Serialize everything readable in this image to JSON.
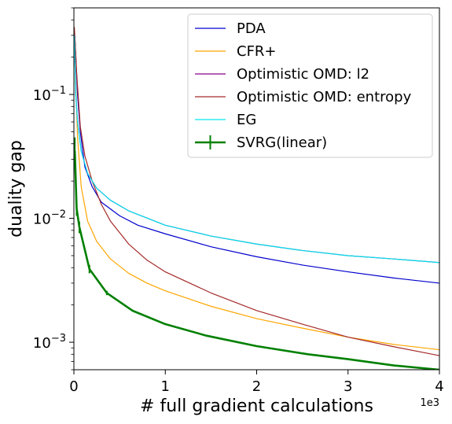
{
  "chart_data": {
    "type": "line",
    "title": "",
    "xlabel": "# full gradient calculations",
    "ylabel": "duality gap",
    "x_offset_label": "1e3",
    "xlim": [
      0,
      4000
    ],
    "ylim": [
      0.0006,
      0.5
    ],
    "y_scale": "log",
    "grid": false,
    "legend_position": "top-right",
    "x_ticks": [
      {
        "value": 0,
        "label": "0"
      },
      {
        "value": 1000,
        "label": "1"
      },
      {
        "value": 2000,
        "label": "2"
      },
      {
        "value": 3000,
        "label": "3"
      },
      {
        "value": 4000,
        "label": "4"
      }
    ],
    "y_ticks": [
      {
        "value": 0.001,
        "base": "10",
        "exp": "−3"
      },
      {
        "value": 0.01,
        "base": "10",
        "exp": "−2"
      },
      {
        "value": 0.1,
        "base": "10",
        "exp": "−1"
      }
    ],
    "series": [
      {
        "name": "PDA",
        "color": "#0000cd",
        "points": [
          [
            10,
            0.3
          ],
          [
            40,
            0.1
          ],
          [
            70,
            0.05
          ],
          [
            120,
            0.026
          ],
          [
            200,
            0.018
          ],
          [
            300,
            0.0135
          ],
          [
            500,
            0.0105
          ],
          [
            700,
            0.0088
          ],
          [
            1000,
            0.0075
          ],
          [
            1500,
            0.0059
          ],
          [
            2000,
            0.0049
          ],
          [
            2500,
            0.0042
          ],
          [
            3000,
            0.0037
          ],
          [
            3500,
            0.0033
          ],
          [
            4000,
            0.003
          ]
        ]
      },
      {
        "name": "CFR+",
        "color": "#ffa500",
        "points": [
          [
            10,
            0.2
          ],
          [
            40,
            0.045
          ],
          [
            80,
            0.018
          ],
          [
            150,
            0.0095
          ],
          [
            250,
            0.0065
          ],
          [
            400,
            0.0047
          ],
          [
            600,
            0.0036
          ],
          [
            800,
            0.003
          ],
          [
            1000,
            0.0026
          ],
          [
            1500,
            0.00195
          ],
          [
            2000,
            0.00155
          ],
          [
            2500,
            0.0013
          ],
          [
            3000,
            0.0011
          ],
          [
            3500,
            0.00096
          ],
          [
            4000,
            0.00087
          ]
        ]
      },
      {
        "name": "Optimistic OMD: l2",
        "color": "#8b008b",
        "points": [
          [
            5,
            0.3
          ],
          [
            20,
            0.1
          ],
          [
            40,
            0.06
          ],
          [
            80,
            0.035
          ],
          [
            150,
            0.023
          ],
          [
            250,
            0.0175
          ],
          [
            400,
            0.014
          ],
          [
            600,
            0.0115
          ],
          [
            1000,
            0.0088
          ],
          [
            1500,
            0.0072
          ],
          [
            2000,
            0.0062
          ],
          [
            2500,
            0.0055
          ],
          [
            3000,
            0.005
          ],
          [
            3500,
            0.0047
          ],
          [
            4000,
            0.0044
          ]
        ]
      },
      {
        "name": "Optimistic OMD: entropy",
        "color": "#a52a2a",
        "points": [
          [
            5,
            0.35
          ],
          [
            30,
            0.15
          ],
          [
            70,
            0.055
          ],
          [
            120,
            0.032
          ],
          [
            200,
            0.02
          ],
          [
            300,
            0.013
          ],
          [
            400,
            0.0095
          ],
          [
            600,
            0.0062
          ],
          [
            800,
            0.0046
          ],
          [
            1000,
            0.0037
          ],
          [
            1500,
            0.0025
          ],
          [
            2000,
            0.0018
          ],
          [
            2500,
            0.0014
          ],
          [
            3000,
            0.0011
          ],
          [
            3500,
            0.00092
          ],
          [
            4000,
            0.00078
          ]
        ]
      },
      {
        "name": "EG",
        "color": "#00e5ee",
        "points": [
          [
            5,
            0.3
          ],
          [
            20,
            0.1
          ],
          [
            40,
            0.06
          ],
          [
            80,
            0.035
          ],
          [
            150,
            0.023
          ],
          [
            250,
            0.0175
          ],
          [
            400,
            0.014
          ],
          [
            600,
            0.0115
          ],
          [
            1000,
            0.0088
          ],
          [
            1500,
            0.0072
          ],
          [
            2000,
            0.0062
          ],
          [
            2500,
            0.0055
          ],
          [
            3000,
            0.005
          ],
          [
            3500,
            0.0047
          ],
          [
            4000,
            0.0044
          ]
        ]
      },
      {
        "name": "SVRG(linear)",
        "color": "#008000",
        "error_bars": true,
        "points": [
          [
            10,
            0.035
          ],
          [
            30,
            0.012
          ],
          [
            60,
            0.0085
          ],
          [
            170,
            0.0039
          ],
          [
            360,
            0.0025
          ],
          [
            640,
            0.0018
          ],
          [
            1000,
            0.0014
          ],
          [
            1450,
            0.00113
          ],
          [
            2000,
            0.00093
          ],
          [
            2560,
            0.0008
          ],
          [
            3000,
            0.00073
          ],
          [
            3500,
            0.00065
          ],
          [
            4000,
            0.0006
          ]
        ],
        "errors": [
          [
            0.027,
            0.045
          ],
          [
            0.0105,
            0.0138
          ],
          [
            0.0076,
            0.0094
          ],
          [
            0.0036,
            0.0042
          ],
          [
            0.0024,
            0.0026
          ],
          null,
          null,
          null,
          null,
          null,
          null,
          null,
          null
        ]
      }
    ]
  }
}
